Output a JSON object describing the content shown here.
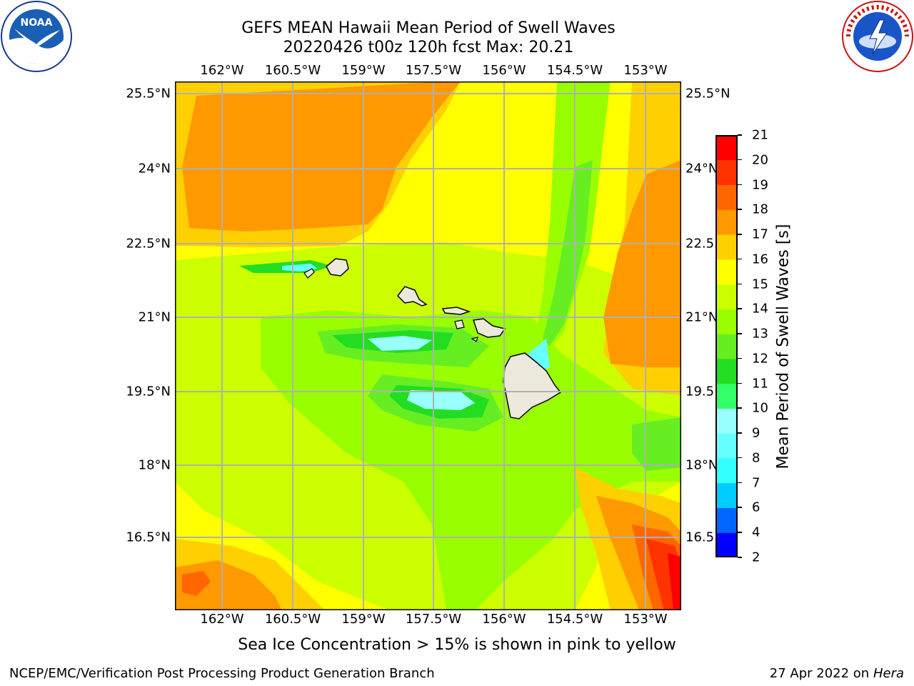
{
  "title_line1": "GEFS MEAN Hawaii Mean Period of Swell Waves",
  "title_line2": "20220426 t00z 120h fcst   Max: 20.21",
  "lon_ticks": [
    "162°W",
    "160.5°W",
    "159°W",
    "157.5°W",
    "156°W",
    "154.5°W",
    "153°W"
  ],
  "lat_ticks_left": [
    "25.5°N",
    "24°N",
    "22.5°N",
    "21°N",
    "19.5°N",
    "18°N",
    "16.5°N"
  ],
  "lat_ticks_right": [
    "25.5°N",
    "24°N",
    "22.5",
    "21°N",
    "19.5",
    "18°N",
    "16.5"
  ],
  "colorbar": {
    "label": "Mean Period of Swell Waves [s]",
    "ticks": [
      "2",
      "4",
      "6",
      "7",
      "8",
      "9",
      "10",
      "11",
      "12",
      "13",
      "14",
      "15",
      "16",
      "17",
      "18",
      "19",
      "20",
      "21"
    ],
    "colors": [
      "#0000ff",
      "#0066ff",
      "#00ccff",
      "#33ffff",
      "#66ffff",
      "#99ffff",
      "#33ff66",
      "#22dd22",
      "#66ee22",
      "#99ff00",
      "#ccff00",
      "#ffff00",
      "#ffd000",
      "#ff9900",
      "#ff6600",
      "#ff3300",
      "#ff0000"
    ]
  },
  "chart_data": {
    "type": "heatmap",
    "title": "GEFS MEAN Hawaii Mean Period of Swell Waves",
    "subtitle": "20220426 t00z 120h fcst   Max: 20.21",
    "xlabel": "",
    "ylabel": "",
    "xlim": [
      -163,
      -152.2
    ],
    "ylim": [
      15.4,
      25.7
    ],
    "colorbar_range": [
      2,
      21
    ],
    "max_value": 20.21,
    "grid": true,
    "colorbar_placement": "right"
  },
  "note": "Sea Ice Concentration > 15% is shown in pink to yellow",
  "footer_left": "NCEP/EMC/Verification Post Processing Product Generation Branch",
  "footer_right_date": "27 Apr 2022 on",
  "footer_right_host": "Hera",
  "logos": {
    "left": "NOAA",
    "right": "National Weather Service"
  }
}
